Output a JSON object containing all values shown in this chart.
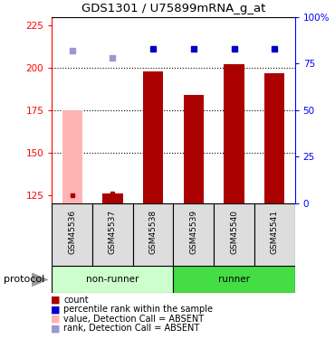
{
  "title": "GDS1301 / U75899mRNA_g_at",
  "samples": [
    "GSM45536",
    "GSM45537",
    "GSM45538",
    "GSM45539",
    "GSM45540",
    "GSM45541"
  ],
  "bar_values": [
    175,
    126,
    198,
    184,
    202,
    197
  ],
  "bar_absent": [
    true,
    false,
    false,
    false,
    false,
    false
  ],
  "rank_values": [
    82,
    78,
    83,
    83,
    83,
    83
  ],
  "rank_absent": [
    true,
    true,
    false,
    false,
    false,
    false
  ],
  "count_values": [
    125,
    126,
    125,
    125,
    125,
    125
  ],
  "ylim_left": [
    120,
    230
  ],
  "ylim_right": [
    0,
    100
  ],
  "yticks_left": [
    125,
    150,
    175,
    200,
    225
  ],
  "yticks_right": [
    0,
    25,
    50,
    75,
    100
  ],
  "ytick_right_labels": [
    "0",
    "25",
    "50",
    "75",
    "100%"
  ],
  "grid_values": [
    200,
    175,
    150
  ],
  "bar_color_normal": "#aa0000",
  "bar_color_absent": "#ffb3b3",
  "rank_color_normal": "#0000cc",
  "rank_color_absent": "#9999cc",
  "count_color": "#aa0000",
  "group_colors_light": "#ccffcc",
  "group_colors_dark": "#44dd44",
  "sample_box_color": "#dddddd",
  "background_color": "#ffffff",
  "bar_width": 0.5,
  "figsize": [
    3.7,
    3.75
  ],
  "dpi": 100
}
